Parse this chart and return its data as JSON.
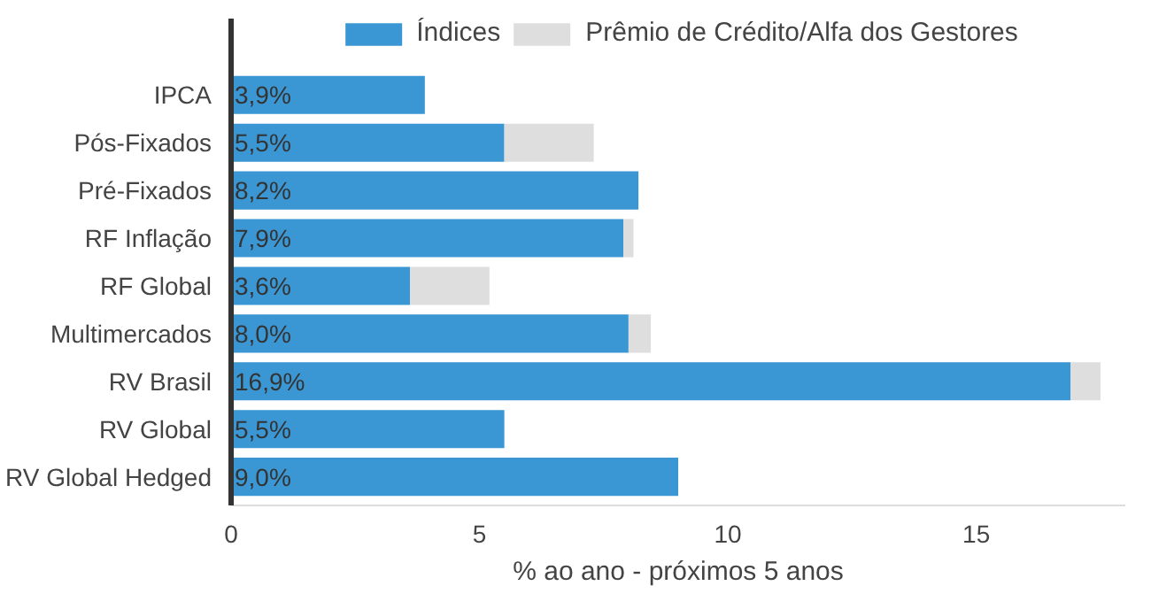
{
  "chart_data": {
    "type": "bar",
    "orientation": "horizontal",
    "stacked": true,
    "categories": [
      "IPCA",
      "Pós-Fixados",
      "Pré-Fixados",
      "RF Inflação",
      "RF Global",
      "Multimercados",
      "RV Brasil",
      "RV Global",
      "RV Global Hedged"
    ],
    "series": [
      {
        "name": "Índices",
        "color": "#3b97d3",
        "values": [
          3.9,
          5.5,
          8.2,
          7.9,
          3.6,
          8.0,
          16.9,
          5.5,
          9.0
        ],
        "value_labels": [
          "3,9%",
          "5,5%",
          "8,2%",
          "7,9%",
          "3,6%",
          "8,0%",
          "16,9%",
          "5,5%",
          "9,0%"
        ]
      },
      {
        "name": "Prêmio de Crédito/Alfa dos Gestores",
        "color": "#dedede",
        "values": [
          0,
          1.8,
          0,
          0.2,
          1.6,
          0.45,
          0.6,
          0,
          0
        ]
      }
    ],
    "xlim": [
      0,
      18
    ],
    "xticks": [
      0,
      5,
      10,
      15
    ],
    "xlabel": "% ao ano - próximos 5 anos",
    "grid": false,
    "legend": "top"
  }
}
